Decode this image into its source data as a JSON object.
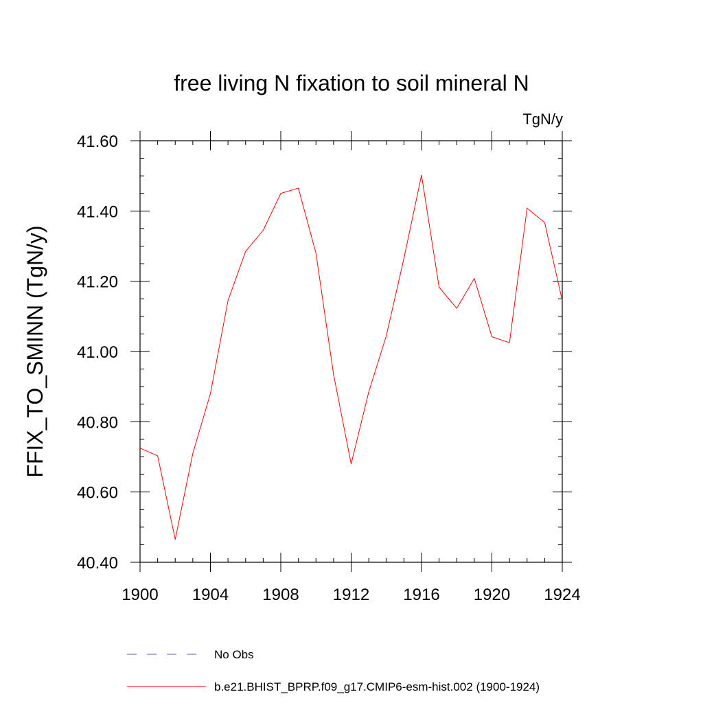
{
  "chart_data": {
    "type": "line",
    "title": "free living N fixation to soil mineral N",
    "units_label": "TgN/y",
    "xlabel": "",
    "ylabel": "FFIX_TO_SMINN  (TgN/y)",
    "xlim": [
      1900,
      1924
    ],
    "ylim": [
      40.4,
      41.6
    ],
    "x_ticks": [
      "1900",
      "1904",
      "1908",
      "1912",
      "1916",
      "1920",
      "1924"
    ],
    "y_ticks": [
      "40.40",
      "40.60",
      "40.80",
      "41.00",
      "41.20",
      "41.40",
      "41.60"
    ],
    "grid": false,
    "x": [
      1900,
      1901,
      1902,
      1903,
      1904,
      1905,
      1906,
      1907,
      1908,
      1909,
      1910,
      1911,
      1912,
      1913,
      1914,
      1915,
      1916,
      1917,
      1918,
      1919,
      1920,
      1921,
      1922,
      1923,
      1924
    ],
    "series": [
      {
        "name": "b.e21.BHIST_BPRP.f09_g17.CMIP6-esm-hist.002 (1900-1924)",
        "color": "#ff0000",
        "style": "solid",
        "values": [
          40.725,
          40.703,
          40.465,
          40.71,
          40.88,
          41.145,
          41.285,
          41.345,
          41.45,
          41.465,
          41.28,
          40.935,
          40.68,
          40.885,
          41.045,
          41.265,
          41.502,
          41.183,
          41.123,
          41.208,
          41.042,
          41.025,
          41.408,
          41.367,
          41.145
        ]
      }
    ],
    "legend": {
      "placement": "bottom",
      "entries": [
        {
          "label": "No Obs",
          "color": "#5a5aa8",
          "style": "dashed"
        },
        {
          "label": "b.e21.BHIST_BPRP.f09_g17.CMIP6-esm-hist.002 (1900-1924)",
          "color": "#ff0000",
          "style": "solid"
        }
      ]
    }
  }
}
